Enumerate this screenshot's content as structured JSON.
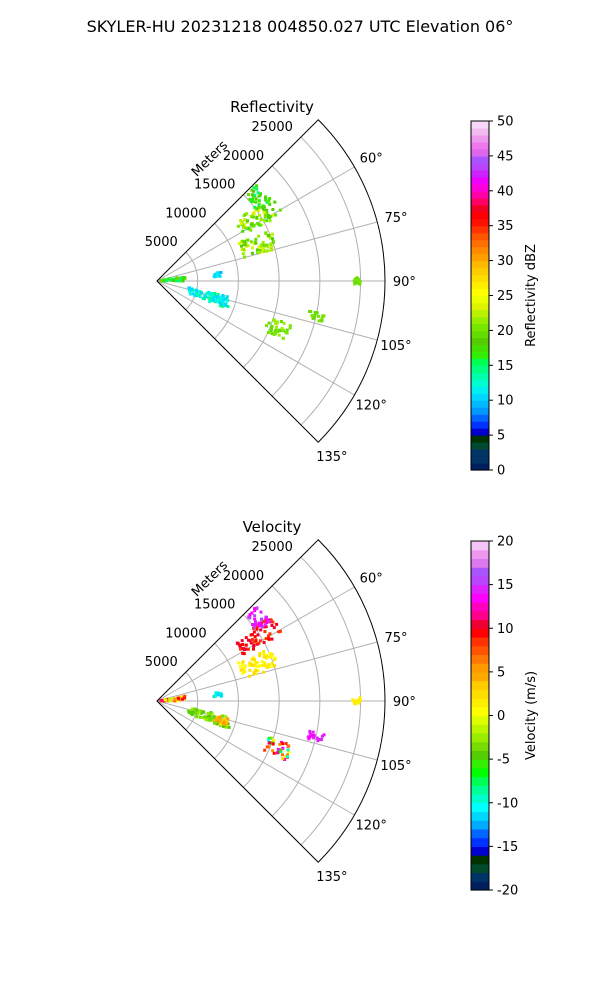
{
  "figure_title": "SKYLER-HU  20231218  004850.027 UTC Elevation 06°",
  "chart_data": [
    {
      "type": "polar-sector",
      "title": "Reflectivity",
      "r_axis_label": "Meters",
      "r_ticks": [
        5000,
        10000,
        15000,
        20000,
        25000
      ],
      "r_tick_labels": [
        "5000",
        "10000",
        "15000",
        "20000",
        "25000"
      ],
      "rlim": [
        0,
        28000
      ],
      "theta_range_deg": [
        45,
        135
      ],
      "theta_ticks": [
        "60°",
        "75°",
        "90°",
        "105°",
        "120°",
        "135°"
      ],
      "theta_tick_values": [
        60,
        75,
        90,
        105,
        120,
        135
      ],
      "colorbar": {
        "label": "Reflectivity dBZ",
        "range": [
          0,
          50
        ],
        "ticks": [
          "0",
          "5",
          "10",
          "15",
          "20",
          "25",
          "30",
          "35",
          "40",
          "45",
          "50"
        ],
        "colormap": "NWSRef"
      },
      "echo_regions": [
        {
          "az": [
            53,
            62
          ],
          "r": [
            12000,
            17500
          ],
          "value_range": [
            16,
            24
          ]
        },
        {
          "az": [
            65,
            75
          ],
          "r": [
            11000,
            15500
          ],
          "value_range": [
            18,
            24
          ]
        },
        {
          "az": [
            46,
            55
          ],
          "r": [
            15000,
            17000
          ],
          "value_range": [
            14,
            20
          ]
        },
        {
          "az": [
            80,
            90
          ],
          "r": [
            500,
            3500
          ],
          "value_range": [
            13,
            20
          ]
        },
        {
          "az": [
            82,
            86
          ],
          "r": [
            7000,
            8000
          ],
          "value_range": [
            9,
            12
          ]
        },
        {
          "az": [
            102,
            112
          ],
          "r": [
            4000,
            9500
          ],
          "value_range": [
            10,
            15
          ]
        },
        {
          "az": [
            104,
            110
          ],
          "r": [
            7500,
            9000
          ],
          "value_range": [
            10,
            13
          ]
        },
        {
          "az": [
            108,
            115
          ],
          "r": [
            14500,
            17500
          ],
          "value_range": [
            19,
            22
          ]
        },
        {
          "az": [
            89,
            91
          ],
          "r": [
            24000,
            25000
          ],
          "value_range": [
            19,
            21
          ]
        },
        {
          "az": [
            101,
            104
          ],
          "r": [
            19000,
            21000
          ],
          "value_range": [
            19,
            21
          ]
        }
      ]
    },
    {
      "type": "polar-sector",
      "title": "Velocity",
      "r_axis_label": "Meters",
      "r_ticks": [
        5000,
        10000,
        15000,
        20000,
        25000
      ],
      "r_tick_labels": [
        "5000",
        "10000",
        "15000",
        "20000",
        "25000"
      ],
      "rlim": [
        0,
        28000
      ],
      "theta_range_deg": [
        45,
        135
      ],
      "theta_ticks": [
        "60°",
        "75°",
        "90°",
        "105°",
        "120°",
        "135°"
      ],
      "theta_tick_values": [
        60,
        75,
        90,
        105,
        120,
        135
      ],
      "colorbar": {
        "label": "Velocity (m/s)",
        "range": [
          -20,
          20
        ],
        "ticks": [
          "-20",
          "-15",
          "-10",
          "-5",
          "0",
          "5",
          "10",
          "15",
          "20"
        ],
        "colormap": "NWSVel"
      },
      "echo_regions": [
        {
          "az": [
            53,
            62
          ],
          "r": [
            12000,
            17500
          ],
          "value_range": [
            8,
            11
          ]
        },
        {
          "az": [
            65,
            75
          ],
          "r": [
            11000,
            15500
          ],
          "value_range": [
            0,
            3
          ]
        },
        {
          "az": [
            46,
            55
          ],
          "r": [
            15000,
            17000
          ],
          "value_range": [
            13,
            16
          ]
        },
        {
          "az": [
            80,
            90
          ],
          "r": [
            500,
            3500
          ],
          "value_range": [
            -2,
            12
          ]
        },
        {
          "az": [
            82,
            86
          ],
          "r": [
            7000,
            8000
          ],
          "value_range": [
            -12,
            -9
          ]
        },
        {
          "az": [
            102,
            112
          ],
          "r": [
            4000,
            9500
          ],
          "value_range": [
            -5,
            -2
          ]
        },
        {
          "az": [
            104,
            110
          ],
          "r": [
            7500,
            9000
          ],
          "value_range": [
            2,
            6
          ]
        },
        {
          "az": [
            108,
            115
          ],
          "r": [
            14500,
            17500
          ],
          "value_range": [
            -12,
            14
          ]
        },
        {
          "az": [
            89,
            91
          ],
          "r": [
            24000,
            25000
          ],
          "value_range": [
            1,
            2
          ]
        },
        {
          "az": [
            101,
            104
          ],
          "r": [
            19000,
            21000
          ],
          "value_range": [
            13,
            15
          ]
        }
      ]
    }
  ]
}
